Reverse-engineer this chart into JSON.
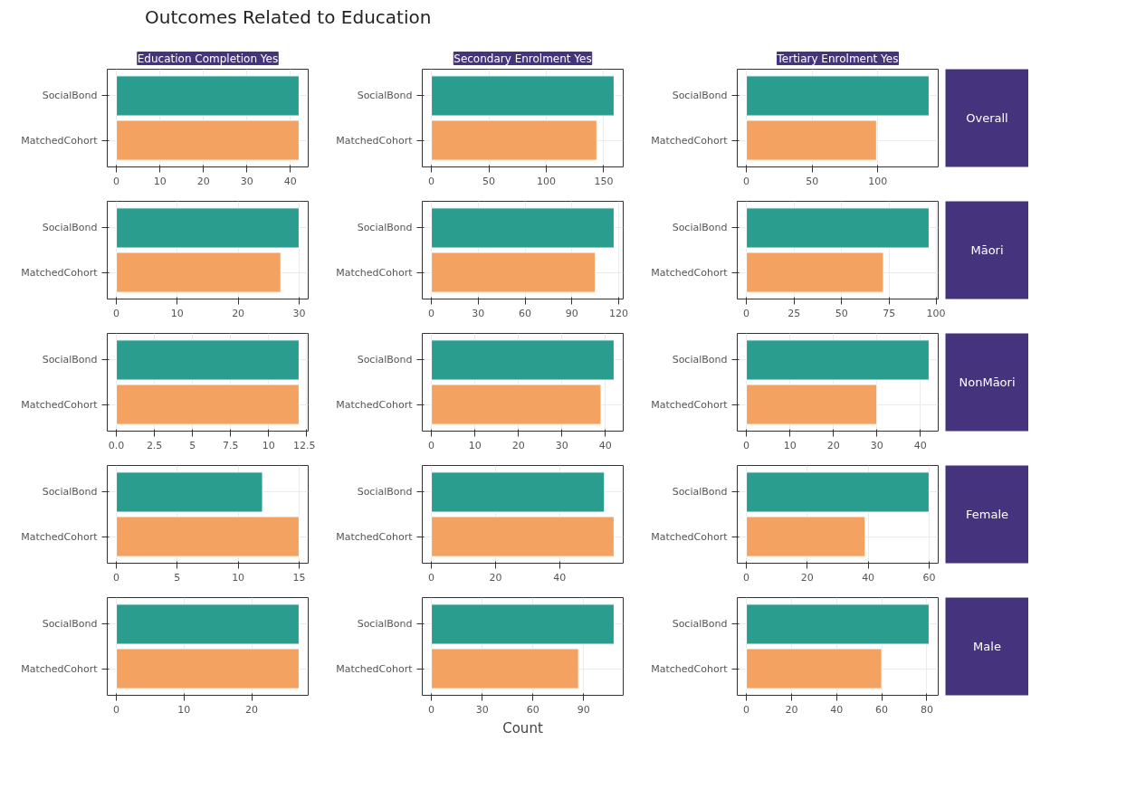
{
  "chart_data": [
    {
      "type": "bar",
      "orientation": "horizontal",
      "title": "Outcomes Related to Education",
      "subtitle": "Education Completion Yes",
      "categories": [
        "SocialBond",
        "MatchedCohort"
      ],
      "values": [
        42,
        42
      ],
      "colors": [
        "#2a9d8f",
        "#f4a261"
      ],
      "xlim": [
        -2.1,
        44.1
      ],
      "xticks": [
        0,
        10,
        20,
        30,
        40
      ],
      "grid": true
    },
    {
      "type": "bar",
      "orientation": "horizontal",
      "subtitle": "Secondary Enrolment Yes",
      "categories": [
        "SocialBond",
        "MatchedCohort"
      ],
      "values": [
        159,
        144
      ],
      "colors": [
        "#2a9d8f",
        "#f4a261"
      ],
      "xlim": [
        -7.95,
        166.95
      ],
      "xticks": [
        0,
        50,
        100,
        150
      ],
      "grid": true
    },
    {
      "type": "bar",
      "orientation": "horizontal",
      "subtitle": "Tertiary Enrolment Yes",
      "y2label": "Overall",
      "categories": [
        "SocialBond",
        "MatchedCohort"
      ],
      "values": [
        139,
        99
      ],
      "colors": [
        "#2a9d8f",
        "#f4a261"
      ],
      "xlim": [
        -6.95,
        145.95
      ],
      "xticks": [
        0,
        50,
        100
      ],
      "grid": true
    },
    {
      "type": "bar",
      "orientation": "horizontal",
      "categories": [
        "SocialBond",
        "MatchedCohort"
      ],
      "values": [
        30,
        27
      ],
      "colors": [
        "#2a9d8f",
        "#f4a261"
      ],
      "xlim": [
        -1.5,
        31.5
      ],
      "xticks": [
        0,
        10,
        20,
        30
      ],
      "grid": true
    },
    {
      "type": "bar",
      "orientation": "horizontal",
      "categories": [
        "SocialBond",
        "MatchedCohort"
      ],
      "values": [
        117,
        105
      ],
      "colors": [
        "#2a9d8f",
        "#f4a261"
      ],
      "xlim": [
        -5.85,
        122.85
      ],
      "xticks": [
        0,
        30,
        60,
        90,
        120
      ],
      "grid": true
    },
    {
      "type": "bar",
      "orientation": "horizontal",
      "y2label": "Māori",
      "categories": [
        "SocialBond",
        "MatchedCohort"
      ],
      "values": [
        96,
        72
      ],
      "colors": [
        "#2a9d8f",
        "#f4a261"
      ],
      "xlim": [
        -4.8,
        100.8
      ],
      "xticks": [
        0,
        25,
        50,
        75,
        100
      ],
      "grid": true
    },
    {
      "type": "bar",
      "orientation": "horizontal",
      "categories": [
        "SocialBond",
        "MatchedCohort"
      ],
      "values": [
        12,
        12
      ],
      "colors": [
        "#2a9d8f",
        "#f4a261"
      ],
      "xlim": [
        -0.6,
        12.6
      ],
      "xticks": [
        {
          "value": 0,
          "label": "0.0"
        },
        2.5,
        5,
        7.5,
        10,
        12.5
      ],
      "grid": true
    },
    {
      "type": "bar",
      "orientation": "horizontal",
      "categories": [
        "SocialBond",
        "MatchedCohort"
      ],
      "values": [
        42,
        39
      ],
      "colors": [
        "#2a9d8f",
        "#f4a261"
      ],
      "xlim": [
        -2.1,
        44.1
      ],
      "xticks": [
        0,
        10,
        20,
        30,
        40
      ],
      "grid": true
    },
    {
      "type": "bar",
      "orientation": "horizontal",
      "y2label": "NonMāori",
      "categories": [
        "SocialBond",
        "MatchedCohort"
      ],
      "values": [
        42,
        30
      ],
      "colors": [
        "#2a9d8f",
        "#f4a261"
      ],
      "xlim": [
        -2.1,
        44.1
      ],
      "xticks": [
        0,
        10,
        20,
        30,
        40
      ],
      "grid": true
    },
    {
      "type": "bar",
      "orientation": "horizontal",
      "categories": [
        "SocialBond",
        "MatchedCohort"
      ],
      "values": [
        12,
        15
      ],
      "colors": [
        "#2a9d8f",
        "#f4a261"
      ],
      "xlim": [
        -0.75,
        15.75
      ],
      "xticks": [
        0,
        5,
        10,
        15
      ],
      "grid": true
    },
    {
      "type": "bar",
      "orientation": "horizontal",
      "categories": [
        "SocialBond",
        "MatchedCohort"
      ],
      "values": [
        54,
        57
      ],
      "colors": [
        "#2a9d8f",
        "#f4a261"
      ],
      "xlim": [
        -2.85,
        59.85
      ],
      "xticks": [
        0,
        20,
        40
      ],
      "grid": true
    },
    {
      "type": "bar",
      "orientation": "horizontal",
      "y2label": "Female",
      "categories": [
        "SocialBond",
        "MatchedCohort"
      ],
      "values": [
        60,
        39
      ],
      "colors": [
        "#2a9d8f",
        "#f4a261"
      ],
      "xlim": [
        -3,
        63
      ],
      "xticks": [
        0,
        20,
        40,
        60
      ],
      "grid": true
    },
    {
      "type": "bar",
      "orientation": "horizontal",
      "categories": [
        "SocialBond",
        "MatchedCohort"
      ],
      "values": [
        27,
        27
      ],
      "colors": [
        "#2a9d8f",
        "#f4a261"
      ],
      "xlim": [
        -1.35,
        28.35
      ],
      "xticks": [
        0,
        10,
        20
      ],
      "grid": true
    },
    {
      "type": "bar",
      "orientation": "horizontal",
      "xlabel": "Count",
      "categories": [
        "SocialBond",
        "MatchedCohort"
      ],
      "values": [
        108,
        87
      ],
      "colors": [
        "#2a9d8f",
        "#f4a261"
      ],
      "xlim": [
        -5.4,
        113.4
      ],
      "xticks": [
        0,
        30,
        60,
        90
      ],
      "grid": true
    },
    {
      "type": "bar",
      "orientation": "horizontal",
      "y2label": "Male",
      "categories": [
        "SocialBond",
        "MatchedCohort"
      ],
      "values": [
        81,
        60
      ],
      "colors": [
        "#2a9d8f",
        "#f4a261"
      ],
      "xlim": [
        -4.05,
        85.05
      ],
      "xticks": [
        0,
        20,
        40,
        60,
        80
      ],
      "grid": true
    }
  ]
}
